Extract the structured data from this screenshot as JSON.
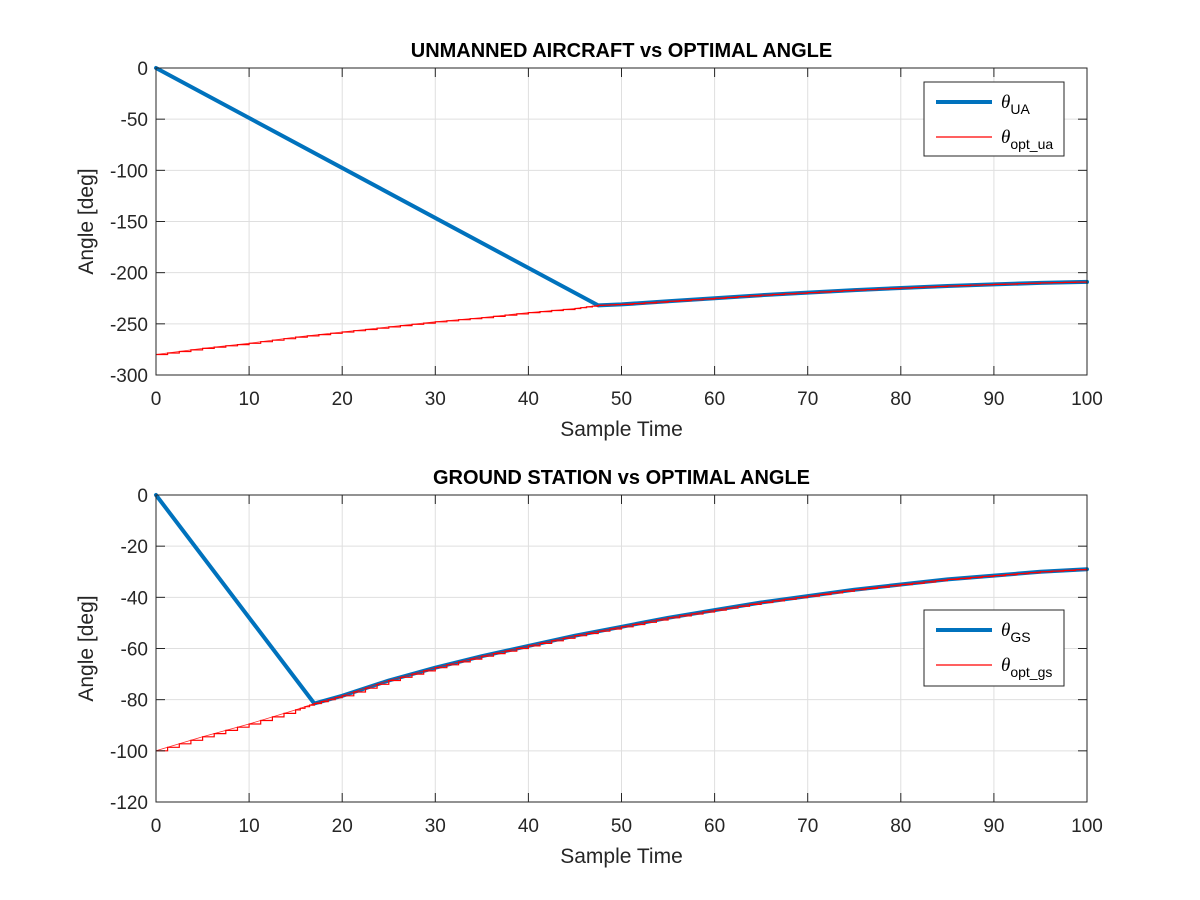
{
  "chart_data": [
    {
      "type": "line",
      "title": "UNMANNED AIRCRAFT vs OPTIMAL ANGLE",
      "xlabel": "Sample Time",
      "ylabel": "Angle [deg]",
      "xlim": [
        0,
        100
      ],
      "ylim": [
        -300,
        0
      ],
      "xticks": [
        0,
        10,
        20,
        30,
        40,
        50,
        60,
        70,
        80,
        90,
        100
      ],
      "yticks": [
        0,
        -50,
        -100,
        -150,
        -200,
        -250,
        -300
      ],
      "grid": true,
      "legend_position": "top-right",
      "series": [
        {
          "name": "θ",
          "subscript": "UA",
          "color": "#0072BD",
          "style": "thick",
          "points": [
            [
              0,
              0
            ],
            [
              47.5,
              -232
            ],
            [
              50,
              -231
            ],
            [
              55,
              -228
            ],
            [
              60,
              -225
            ],
            [
              65,
              -222
            ],
            [
              70,
              -219.5
            ],
            [
              75,
              -217
            ],
            [
              80,
              -215
            ],
            [
              85,
              -213
            ],
            [
              90,
              -211.5
            ],
            [
              95,
              -210
            ],
            [
              100,
              -209
            ]
          ]
        },
        {
          "name": "θ",
          "subscript": "opt_ua",
          "color": "#FF0000",
          "style": "stairs",
          "points": [
            [
              0,
              -280
            ],
            [
              5,
              -274
            ],
            [
              10,
              -269
            ],
            [
              15,
              -263
            ],
            [
              20,
              -258
            ],
            [
              25,
              -253
            ],
            [
              30,
              -248
            ],
            [
              35,
              -244
            ],
            [
              40,
              -239
            ],
            [
              45,
              -235
            ],
            [
              47.5,
              -232
            ],
            [
              50,
              -231
            ],
            [
              55,
              -228
            ],
            [
              60,
              -225
            ],
            [
              65,
              -222
            ],
            [
              70,
              -219.5
            ],
            [
              75,
              -217
            ],
            [
              80,
              -215
            ],
            [
              85,
              -213
            ],
            [
              90,
              -211.5
            ],
            [
              95,
              -210
            ],
            [
              100,
              -209
            ]
          ]
        }
      ]
    },
    {
      "type": "line",
      "title": "GROUND STATION vs OPTIMAL ANGLE",
      "xlabel": "Sample Time",
      "ylabel": "Angle [deg]",
      "xlim": [
        0,
        100
      ],
      "ylim": [
        -120,
        0
      ],
      "xticks": [
        0,
        10,
        20,
        30,
        40,
        50,
        60,
        70,
        80,
        90,
        100
      ],
      "yticks": [
        0,
        -20,
        -40,
        -60,
        -80,
        -100,
        -120
      ],
      "grid": true,
      "legend_position": "right",
      "series": [
        {
          "name": "θ",
          "subscript": "GS",
          "color": "#0072BD",
          "style": "thick",
          "points": [
            [
              0,
              0
            ],
            [
              17,
              -81.5
            ],
            [
              20,
              -78.5
            ],
            [
              25,
              -72.5
            ],
            [
              30,
              -67.5
            ],
            [
              35,
              -63
            ],
            [
              40,
              -59
            ],
            [
              45,
              -55
            ],
            [
              50,
              -51.5
            ],
            [
              55,
              -48
            ],
            [
              60,
              -45
            ],
            [
              65,
              -42
            ],
            [
              70,
              -39.5
            ],
            [
              75,
              -37
            ],
            [
              80,
              -35
            ],
            [
              85,
              -33
            ],
            [
              90,
              -31.5
            ],
            [
              95,
              -30
            ],
            [
              100,
              -29
            ]
          ]
        },
        {
          "name": "θ",
          "subscript": "opt_gs",
          "color": "#FF0000",
          "style": "stairs",
          "points": [
            [
              0,
              -100
            ],
            [
              5,
              -94.5
            ],
            [
              10,
              -89.5
            ],
            [
              15,
              -84
            ],
            [
              17,
              -81.5
            ],
            [
              20,
              -78.5
            ],
            [
              25,
              -72.5
            ],
            [
              30,
              -67.5
            ],
            [
              35,
              -63
            ],
            [
              40,
              -59
            ],
            [
              45,
              -55
            ],
            [
              50,
              -51.5
            ],
            [
              55,
              -48
            ],
            [
              60,
              -45
            ],
            [
              65,
              -42
            ],
            [
              70,
              -39.5
            ],
            [
              75,
              -37
            ],
            [
              80,
              -35
            ],
            [
              85,
              -33
            ],
            [
              90,
              -31.5
            ],
            [
              95,
              -30
            ],
            [
              100,
              -29
            ]
          ]
        }
      ]
    }
  ]
}
